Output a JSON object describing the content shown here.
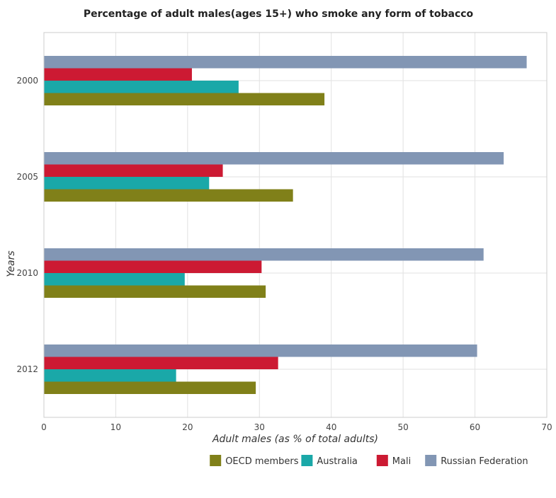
{
  "chart_data": {
    "type": "bar",
    "orientation": "horizontal",
    "title": "Percentage of adult males(ages 15+) who smoke any form of tobacco",
    "xlabel": "Adult males (as % of total adults)",
    "ylabel": "Years",
    "categories": [
      "2000",
      "2005",
      "2010",
      "2012"
    ],
    "xlim": [
      0,
      70
    ],
    "xticks": [
      0,
      10,
      20,
      30,
      40,
      50,
      60,
      70
    ],
    "grid": true,
    "legend_position": "bottom-right",
    "series": [
      {
        "name": "OECD members",
        "color": "#808019",
        "values": [
          39.05,
          34.67,
          30.87,
          29.49
        ]
      },
      {
        "name": "Australia",
        "color": "#1aa8a8",
        "values": [
          27.1,
          23.0,
          19.6,
          18.4
        ]
      },
      {
        "name": "Mali",
        "color": "#cc1a33",
        "values": [
          20.6,
          24.9,
          30.3,
          32.6
        ]
      },
      {
        "name": "Russian Federation",
        "color": "#8296b4",
        "values": [
          67.2,
          64.0,
          61.2,
          60.3
        ]
      }
    ]
  }
}
